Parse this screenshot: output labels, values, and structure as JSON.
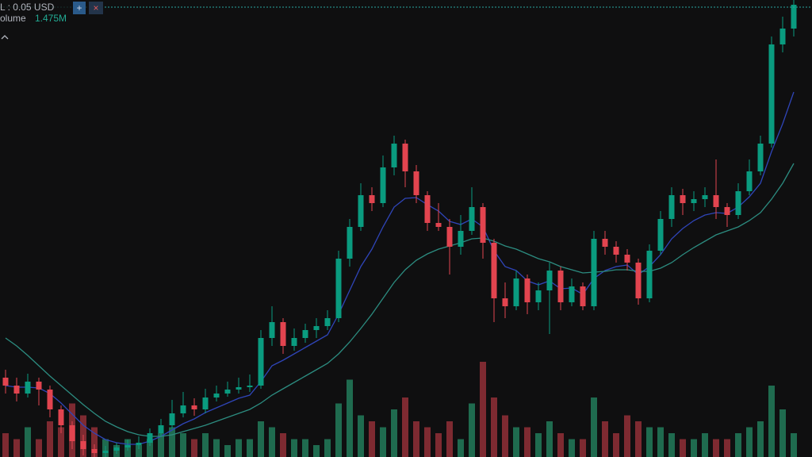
{
  "header": {
    "unit_label": "L : 0.05 USD",
    "volume_label": "olume",
    "volume_value": "1.475M"
  },
  "chart_data": {
    "type": "candlestick",
    "ylim": [
      0,
      576
    ],
    "up_color": "#0a9b7f",
    "down_color": "#e2444f",
    "open": [
      100,
      90,
      80,
      95,
      85,
      60,
      40,
      20,
      10,
      5,
      8,
      12,
      15,
      18,
      30,
      40,
      55,
      65,
      60,
      75,
      80,
      85,
      88,
      90,
      150,
      170,
      140,
      150,
      160,
      165,
      175,
      250,
      290,
      330,
      320,
      365,
      395,
      360,
      330,
      295,
      290,
      265,
      285,
      315,
      270,
      200,
      190,
      225,
      195,
      210,
      235,
      195,
      215,
      190,
      275,
      265,
      255,
      245,
      200,
      260,
      300,
      330,
      320,
      325,
      330,
      315,
      305,
      335,
      360,
      395,
      520,
      540
    ],
    "high": [
      110,
      100,
      105,
      100,
      90,
      65,
      45,
      28,
      16,
      14,
      18,
      22,
      26,
      36,
      48,
      72,
      82,
      74,
      86,
      90,
      95,
      100,
      104,
      160,
      190,
      175,
      162,
      168,
      175,
      185,
      260,
      300,
      345,
      340,
      380,
      405,
      400,
      368,
      335,
      320,
      300,
      305,
      340,
      320,
      275,
      220,
      235,
      230,
      220,
      245,
      240,
      225,
      220,
      285,
      285,
      272,
      262,
      250,
      268,
      310,
      340,
      338,
      335,
      340,
      375,
      320,
      345,
      375,
      405,
      530,
      555,
      576
    ],
    "low": [
      80,
      70,
      75,
      65,
      50,
      30,
      10,
      2,
      0,
      0,
      4,
      8,
      10,
      14,
      26,
      36,
      50,
      52,
      55,
      70,
      76,
      80,
      82,
      86,
      140,
      130,
      134,
      144,
      150,
      160,
      170,
      240,
      285,
      310,
      315,
      355,
      340,
      320,
      285,
      285,
      230,
      255,
      280,
      250,
      170,
      175,
      185,
      180,
      185,
      155,
      185,
      190,
      185,
      185,
      255,
      245,
      235,
      192,
      195,
      255,
      290,
      305,
      310,
      315,
      300,
      290,
      300,
      330,
      355,
      390,
      510,
      530
    ],
    "close": [
      90,
      80,
      95,
      85,
      60,
      40,
      20,
      10,
      5,
      8,
      12,
      15,
      18,
      30,
      40,
      55,
      65,
      60,
      75,
      80,
      85,
      88,
      90,
      150,
      170,
      140,
      150,
      160,
      165,
      175,
      250,
      290,
      330,
      320,
      365,
      395,
      360,
      330,
      295,
      290,
      265,
      285,
      315,
      270,
      200,
      190,
      225,
      195,
      210,
      235,
      195,
      215,
      190,
      275,
      265,
      255,
      245,
      200,
      260,
      300,
      330,
      320,
      325,
      330,
      315,
      305,
      335,
      360,
      395,
      520,
      540,
      570
    ],
    "lines": [
      {
        "color": "#2f45b8",
        "values": [
          90,
          88,
          88,
          87,
          80,
          68,
          54,
          40,
          30,
          22,
          18,
          16,
          16,
          20,
          26,
          34,
          42,
          48,
          56,
          62,
          68,
          74,
          78,
          95,
          115,
          122,
          130,
          138,
          146,
          154,
          180,
          210,
          240,
          262,
          290,
          315,
          326,
          327,
          318,
          310,
          297,
          293,
          300,
          290,
          260,
          240,
          235,
          222,
          217,
          222,
          212,
          213,
          205,
          225,
          235,
          240,
          242,
          230,
          240,
          255,
          275,
          288,
          298,
          305,
          308,
          307,
          315,
          328,
          345,
          385,
          420,
          460
        ]
      },
      {
        "color": "#2c8c80",
        "values": [
          150,
          140,
          128,
          115,
          102,
          90,
          78,
          66,
          55,
          45,
          38,
          32,
          28,
          26,
          26,
          28,
          32,
          36,
          40,
          45,
          50,
          55,
          60,
          68,
          78,
          86,
          94,
          102,
          110,
          118,
          130,
          145,
          162,
          180,
          200,
          220,
          236,
          248,
          256,
          262,
          266,
          270,
          275,
          276,
          272,
          266,
          262,
          256,
          250,
          246,
          240,
          236,
          232,
          233,
          234,
          236,
          236,
          234,
          234,
          238,
          245,
          255,
          264,
          272,
          280,
          285,
          290,
          298,
          308,
          325,
          345,
          370
        ]
      }
    ],
    "volume": [
      0.4,
      0.3,
      0.5,
      0.3,
      0.6,
      0.5,
      0.9,
      0.7,
      0.5,
      0.3,
      0.2,
      0.3,
      0.2,
      0.3,
      0.4,
      0.5,
      0.4,
      0.3,
      0.4,
      0.3,
      0.2,
      0.3,
      0.3,
      0.6,
      0.5,
      0.4,
      0.3,
      0.3,
      0.2,
      0.3,
      0.9,
      1.3,
      0.7,
      0.6,
      0.5,
      0.8,
      1.0,
      0.6,
      0.5,
      0.4,
      0.6,
      0.3,
      0.9,
      1.6,
      1.0,
      0.7,
      0.5,
      0.5,
      0.4,
      0.6,
      0.4,
      0.3,
      0.3,
      1.0,
      0.6,
      0.4,
      0.7,
      0.6,
      0.5,
      0.5,
      0.4,
      0.3,
      0.3,
      0.4,
      0.3,
      0.3,
      0.4,
      0.5,
      0.6,
      1.2,
      0.8,
      0.4
    ],
    "volume_ylim": [
      0,
      2
    ],
    "volume_up_color": "#1f6b4f",
    "volume_down_color": "#7e2a31"
  }
}
